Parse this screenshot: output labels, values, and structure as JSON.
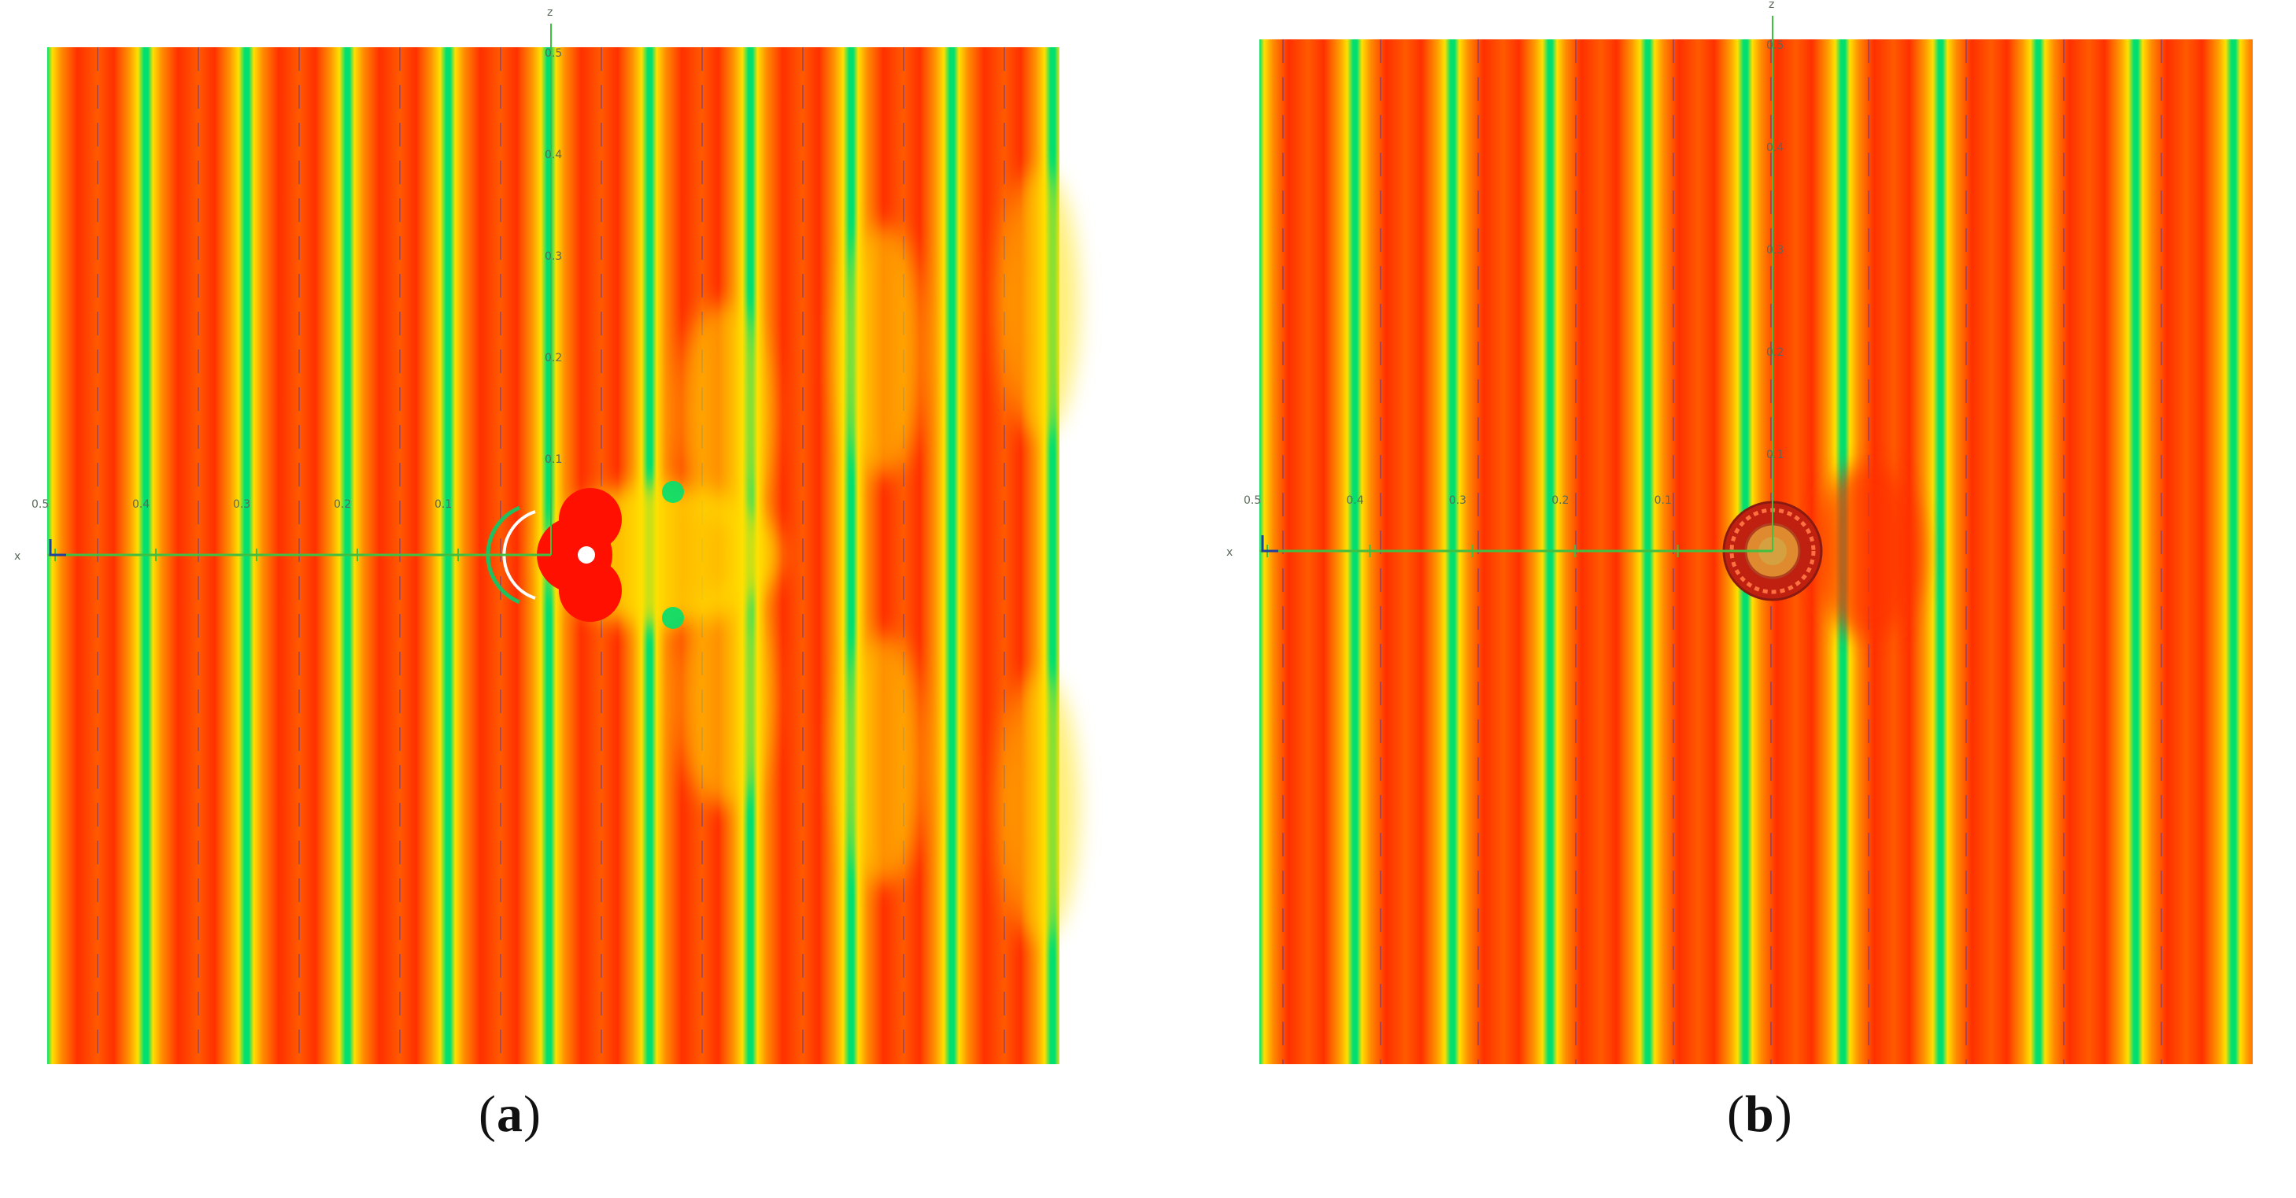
{
  "panels": [
    {
      "id": "a",
      "caption_letter": "a",
      "x_tick_labels": [
        "0.5",
        "0.4",
        "0.3",
        "0.2",
        "0.1"
      ],
      "z_tick_labels": [
        "0.5",
        "0.4",
        "0.3",
        "0.2",
        "0.1"
      ],
      "axis_x_label": "x",
      "axis_z_label": "z"
    },
    {
      "id": "b",
      "caption_letter": "b",
      "x_tick_labels": [
        "0.5",
        "0.4",
        "0.3",
        "0.2",
        "0.1"
      ],
      "z_tick_labels": [
        "0.5",
        "0.4",
        "0.3",
        "0.2",
        "0.1"
      ],
      "axis_x_label": "x",
      "axis_z_label": "z"
    }
  ],
  "colors": {
    "trough": "#ff3000",
    "mid": "#ffe000",
    "crest": "#00e070",
    "node": "#0030ff",
    "axis": "#40c040"
  }
}
